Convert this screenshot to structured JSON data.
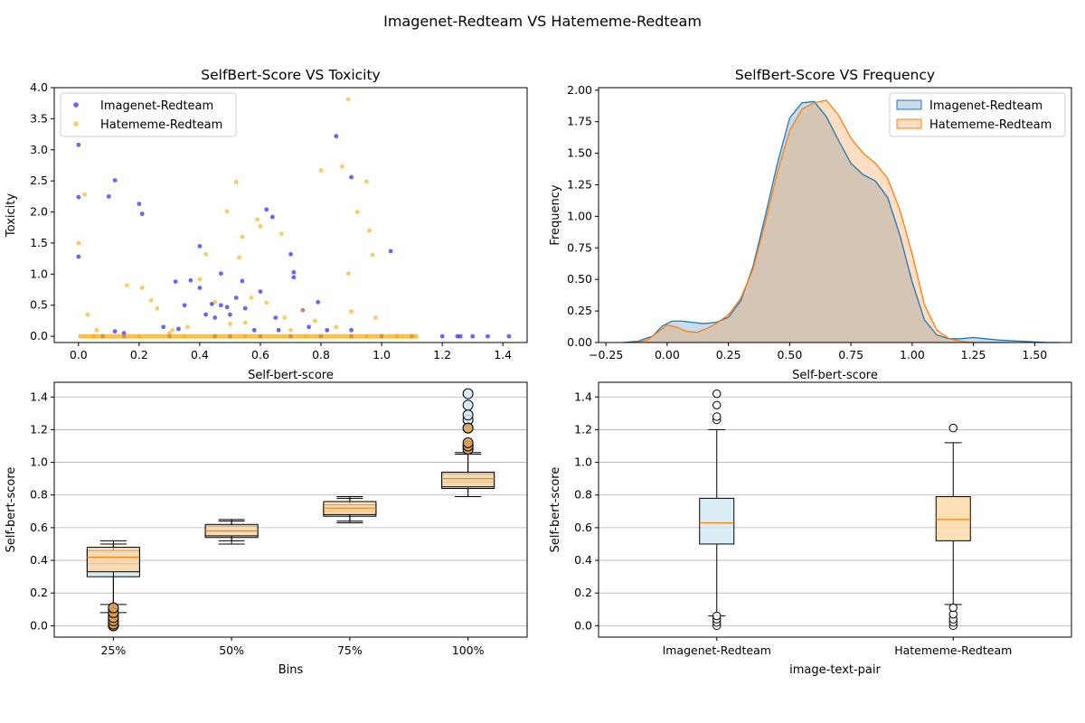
{
  "figure": {
    "suptitle": "Imagenet-Redteam  VS  Hatememe-Redteam",
    "colors": {
      "imagenet_scatter": "#0000ff",
      "hatememe_scatter": "#ffa500",
      "imagenet_kde": "#1f77b4",
      "hatememe_kde": "#ff7f0e",
      "imagenet_box_fill": "#cfe8f3",
      "hatememe_box_fill": "#fdd49e",
      "median": "#ff7f0e",
      "grid": "#b0b0b0"
    }
  },
  "chart_data": [
    {
      "id": "scatter",
      "type": "scatter",
      "title": "SelfBert-Score VS Toxicity",
      "xlabel": "Self-bert-score",
      "ylabel": "Toxicity",
      "xlim": [
        -0.08,
        1.48
      ],
      "ylim": [
        -0.1,
        4.0
      ],
      "xticks": [
        "0.0",
        "0.2",
        "0.4",
        "0.6",
        "0.8",
        "1.0",
        "1.2",
        "1.4"
      ],
      "yticks": [
        "0.0",
        "0.5",
        "1.0",
        "1.5",
        "2.0",
        "2.5",
        "3.0",
        "3.5",
        "4.0"
      ],
      "legend": "upper-left",
      "series": [
        {
          "name": "Imagenet-Redteam",
          "points": [
            [
              0.0,
              3.08
            ],
            [
              0.0,
              2.24
            ],
            [
              0.0,
              1.28
            ],
            [
              0.1,
              2.25
            ],
            [
              0.12,
              2.51
            ],
            [
              0.2,
              2.13
            ],
            [
              0.21,
              1.97
            ],
            [
              0.32,
              0.88
            ],
            [
              0.35,
              0.5
            ],
            [
              0.37,
              0.9
            ],
            [
              0.4,
              1.45
            ],
            [
              0.4,
              0.78
            ],
            [
              0.42,
              0.35
            ],
            [
              0.44,
              0.52
            ],
            [
              0.45,
              0.3
            ],
            [
              0.47,
              1.01
            ],
            [
              0.47,
              0.5
            ],
            [
              0.49,
              0.47
            ],
            [
              0.5,
              0.35
            ],
            [
              0.52,
              0.62
            ],
            [
              0.54,
              0.89
            ],
            [
              0.55,
              0.45
            ],
            [
              0.58,
              0.1
            ],
            [
              0.6,
              0.72
            ],
            [
              0.62,
              2.04
            ],
            [
              0.64,
              1.92
            ],
            [
              0.65,
              0.3
            ],
            [
              0.66,
              0.1
            ],
            [
              0.7,
              1.32
            ],
            [
              0.71,
              1.03
            ],
            [
              0.71,
              0.95
            ],
            [
              0.74,
              0.42
            ],
            [
              0.76,
              0.15
            ],
            [
              0.79,
              0.55
            ],
            [
              0.82,
              0.1
            ],
            [
              0.85,
              3.22
            ],
            [
              0.9,
              2.56
            ],
            [
              0.9,
              0.1
            ],
            [
              1.03,
              1.37
            ],
            [
              0.12,
              0.08
            ],
            [
              0.15,
              0.05
            ],
            [
              0.28,
              0.15
            ],
            [
              0.33,
              0.12
            ],
            [
              1.2,
              0.0
            ],
            [
              1.25,
              0.0
            ],
            [
              1.26,
              0.0
            ],
            [
              1.3,
              0.0
            ],
            [
              1.35,
              0.0
            ],
            [
              1.42,
              0.0
            ],
            [
              0.08,
              0.0
            ],
            [
              0.15,
              0.0
            ],
            [
              0.3,
              0.0
            ],
            [
              0.45,
              0.0
            ],
            [
              0.5,
              0.0
            ],
            [
              0.6,
              0.0
            ],
            [
              0.7,
              0.0
            ],
            [
              0.8,
              0.0
            ],
            [
              0.9,
              0.0
            ],
            [
              1.0,
              0.0
            ],
            [
              1.1,
              0.0
            ]
          ]
        },
        {
          "name": "Hatememe-Redteam",
          "points": [
            [
              0.0,
              1.5
            ],
            [
              0.02,
              2.28
            ],
            [
              0.03,
              0.35
            ],
            [
              0.06,
              0.1
            ],
            [
              0.16,
              0.82
            ],
            [
              0.21,
              0.78
            ],
            [
              0.24,
              0.58
            ],
            [
              0.26,
              0.45
            ],
            [
              0.31,
              0.1
            ],
            [
              0.36,
              0.15
            ],
            [
              0.4,
              0.92
            ],
            [
              0.42,
              1.32
            ],
            [
              0.45,
              0.55
            ],
            [
              0.49,
              2.01
            ],
            [
              0.52,
              2.48
            ],
            [
              0.53,
              1.27
            ],
            [
              0.54,
              1.6
            ],
            [
              0.55,
              0.22
            ],
            [
              0.57,
              0.62
            ],
            [
              0.59,
              1.88
            ],
            [
              0.6,
              1.77
            ],
            [
              0.62,
              0.54
            ],
            [
              0.67,
              1.65
            ],
            [
              0.68,
              0.3
            ],
            [
              0.74,
              0.42
            ],
            [
              0.78,
              0.25
            ],
            [
              0.8,
              2.67
            ],
            [
              0.87,
              2.73
            ],
            [
              0.89,
              3.81
            ],
            [
              0.89,
              1.01
            ],
            [
              0.9,
              0.4
            ],
            [
              0.92,
              2.0
            ],
            [
              0.95,
              2.49
            ],
            [
              0.96,
              1.7
            ],
            [
              0.97,
              1.31
            ],
            [
              0.98,
              0.3
            ],
            [
              0.5,
              0.2
            ],
            [
              0.85,
              0.15
            ],
            [
              0.7,
              0.1
            ],
            [
              0.3,
              0.05
            ],
            [
              0.05,
              0.0
            ],
            [
              0.2,
              0.0
            ],
            [
              0.35,
              0.0
            ],
            [
              0.55,
              0.0
            ],
            [
              0.75,
              0.0
            ],
            [
              0.95,
              0.0
            ],
            [
              1.05,
              0.0
            ],
            [
              1.1,
              0.0
            ]
          ]
        }
      ]
    },
    {
      "id": "kde",
      "type": "area",
      "title": "SelfBert-Score VS Frequency",
      "xlabel": "Self-bert-score",
      "ylabel": "Frequency",
      "xlim": [
        -0.28,
        1.65
      ],
      "ylim": [
        0,
        2.02
      ],
      "xticks": [
        "−0.25",
        "0.00",
        "0.25",
        "0.50",
        "0.75",
        "1.00",
        "1.25",
        "1.50"
      ],
      "yticks": [
        "0.00",
        "0.25",
        "0.50",
        "0.75",
        "1.00",
        "1.25",
        "1.50",
        "1.75",
        "2.00"
      ],
      "legend": "upper-right",
      "series": [
        {
          "name": "Imagenet-Redteam",
          "x": [
            -0.18,
            -0.12,
            -0.06,
            -0.02,
            0.02,
            0.06,
            0.1,
            0.15,
            0.2,
            0.25,
            0.3,
            0.35,
            0.4,
            0.45,
            0.5,
            0.55,
            0.6,
            0.65,
            0.7,
            0.75,
            0.8,
            0.85,
            0.9,
            0.95,
            1.0,
            1.05,
            1.1,
            1.15,
            1.2,
            1.25,
            1.3,
            1.35,
            1.45,
            1.55,
            1.6
          ],
          "y": [
            0.0,
            0.01,
            0.05,
            0.13,
            0.17,
            0.17,
            0.16,
            0.15,
            0.16,
            0.2,
            0.33,
            0.6,
            1.0,
            1.42,
            1.78,
            1.9,
            1.91,
            1.79,
            1.6,
            1.42,
            1.33,
            1.28,
            1.15,
            0.85,
            0.48,
            0.18,
            0.06,
            0.03,
            0.03,
            0.04,
            0.03,
            0.02,
            0.01,
            0.0,
            0.0
          ]
        },
        {
          "name": "Hatememe-Redteam",
          "x": [
            -0.13,
            -0.08,
            -0.04,
            0.0,
            0.04,
            0.08,
            0.12,
            0.16,
            0.2,
            0.25,
            0.3,
            0.35,
            0.4,
            0.45,
            0.5,
            0.55,
            0.6,
            0.65,
            0.7,
            0.75,
            0.8,
            0.85,
            0.9,
            0.95,
            1.0,
            1.05,
            1.1,
            1.15,
            1.2,
            1.25,
            1.3,
            1.38
          ],
          "y": [
            0.0,
            0.02,
            0.08,
            0.14,
            0.12,
            0.09,
            0.08,
            0.11,
            0.15,
            0.22,
            0.35,
            0.58,
            0.95,
            1.35,
            1.68,
            1.85,
            1.9,
            1.92,
            1.8,
            1.62,
            1.5,
            1.42,
            1.3,
            1.05,
            0.7,
            0.3,
            0.1,
            0.03,
            0.01,
            0.0,
            0.0,
            0.0
          ]
        }
      ]
    },
    {
      "id": "bins-box",
      "type": "box",
      "xlabel": "Bins",
      "ylabel": "Self-bert-score",
      "ylim": [
        -0.07,
        1.49
      ],
      "yticks": [
        "0.0",
        "0.2",
        "0.4",
        "0.6",
        "0.8",
        "1.0",
        "1.2",
        "1.4"
      ],
      "grid": "y",
      "categories": [
        "25%",
        "50%",
        "75%",
        "100%"
      ],
      "series": [
        {
          "name": "Imagenet-Redteam",
          "boxes": [
            {
              "q1": 0.3,
              "median": 0.38,
              "q3": 0.46,
              "whisker_low": 0.13,
              "whisker_high": 0.52,
              "outliers": [
                0.0,
                0.02,
                0.03,
                0.05,
                0.07,
                0.1
              ]
            },
            {
              "q1": 0.54,
              "median": 0.58,
              "q3": 0.61,
              "whisker_low": 0.5,
              "whisker_high": 0.65,
              "outliers": []
            },
            {
              "q1": 0.67,
              "median": 0.7,
              "q3": 0.74,
              "whisker_low": 0.63,
              "whisker_high": 0.78,
              "outliers": []
            },
            {
              "q1": 0.84,
              "median": 0.88,
              "q3": 0.93,
              "whisker_low": 0.79,
              "whisker_high": 1.06,
              "outliers": [
                1.1,
                1.21,
                1.26,
                1.29,
                1.35,
                1.42
              ]
            }
          ]
        },
        {
          "name": "Hatememe-Redteam",
          "boxes": [
            {
              "q1": 0.33,
              "median": 0.42,
              "q3": 0.48,
              "whisker_low": 0.08,
              "whisker_high": 0.5,
              "outliers": [
                0.0,
                0.01,
                0.03,
                0.05,
                0.08,
                0.11
              ]
            },
            {
              "q1": 0.55,
              "median": 0.58,
              "q3": 0.62,
              "whisker_low": 0.52,
              "whisker_high": 0.64,
              "outliers": []
            },
            {
              "q1": 0.68,
              "median": 0.72,
              "q3": 0.76,
              "whisker_low": 0.64,
              "whisker_high": 0.79,
              "outliers": []
            },
            {
              "q1": 0.85,
              "median": 0.9,
              "q3": 0.94,
              "whisker_low": 0.79,
              "whisker_high": 1.05,
              "outliers": [
                1.08,
                1.1,
                1.12,
                1.21
              ]
            }
          ]
        }
      ]
    },
    {
      "id": "pair-box",
      "type": "box",
      "xlabel": "image-text-pair",
      "ylabel": "Self-bert-score",
      "ylim": [
        -0.07,
        1.49
      ],
      "yticks": [
        "0.0",
        "0.2",
        "0.4",
        "0.6",
        "0.8",
        "1.0",
        "1.2",
        "1.4"
      ],
      "grid": "y",
      "categories": [
        "Imagenet-Redteam",
        "Hatememe-Redteam"
      ],
      "boxes": [
        {
          "q1": 0.5,
          "median": 0.63,
          "q3": 0.78,
          "whisker_low": 0.06,
          "whisker_high": 1.2,
          "outliers": [
            0.0,
            0.02,
            0.04,
            0.06,
            1.26,
            1.28,
            1.35,
            1.42
          ],
          "fill": "imagenet_box_fill"
        },
        {
          "q1": 0.52,
          "median": 0.65,
          "q3": 0.79,
          "whisker_low": 0.13,
          "whisker_high": 1.12,
          "outliers": [
            0.0,
            0.02,
            0.04,
            0.07,
            0.11,
            1.21
          ],
          "fill": "hatememe_box_fill"
        }
      ]
    }
  ]
}
